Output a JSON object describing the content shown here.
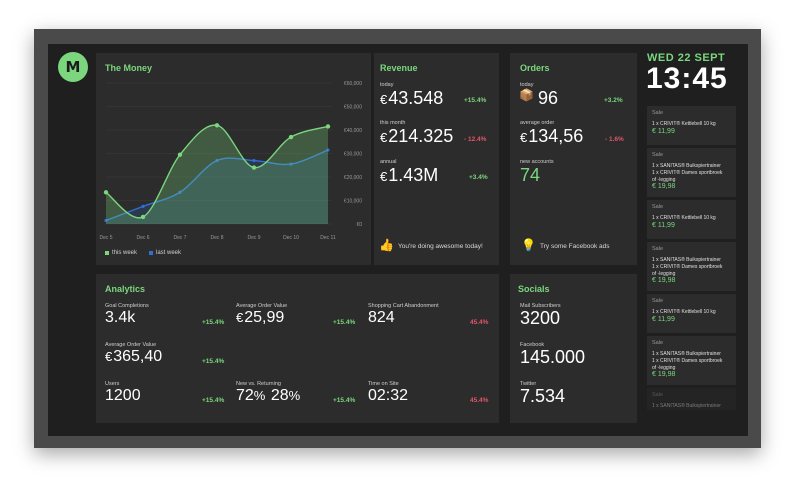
{
  "clock": {
    "date": "WED 22 SEPT",
    "time": "13:45"
  },
  "money": {
    "title": "The Money",
    "x_ticks": [
      "Dec 5",
      "Dec 6",
      "Dec 7",
      "Dec 8",
      "Dec 9",
      "Dec 10",
      "Dec 11"
    ],
    "y_ticks": [
      "€60,000",
      "€50,000",
      "€40,000",
      "€30,000",
      "€20,000",
      "€10,000",
      "€0"
    ],
    "legend": {
      "this_week": "this week",
      "last_week": "last week"
    }
  },
  "chart_data": {
    "type": "area",
    "title": "The Money",
    "categories": [
      "Dec 5",
      "Dec 6",
      "Dec 7",
      "Dec 8",
      "Dec 9",
      "Dec 10",
      "Dec 11"
    ],
    "ylim": [
      0,
      60000
    ],
    "series": [
      {
        "name": "this week",
        "values": [
          13500,
          3000,
          29500,
          42000,
          24000,
          37000,
          41500
        ],
        "color": "#7bd67e"
      },
      {
        "name": "last week",
        "values": [
          1500,
          7500,
          13500,
          27000,
          27000,
          25500,
          31500
        ],
        "color": "#2f6fd8"
      }
    ],
    "grid": true,
    "legend_position": "bottom-left"
  },
  "revenue": {
    "title": "Revenue",
    "today_label": "today",
    "today_value": "43.548",
    "today_change": "+15.4%",
    "month_label": "this month",
    "month_value": "214.325",
    "month_change": "- 12.4%",
    "annual_label": "annual",
    "annual_value": "1.43M",
    "annual_change": "+3.4%",
    "currency": "€",
    "note": "You're doing awesome today!"
  },
  "orders": {
    "title": "Orders",
    "today_label": "today",
    "today_value": "96",
    "today_change": "+3.2%",
    "avg_label": "average order",
    "avg_value": "134,56",
    "avg_change": "- 1.6%",
    "accounts_label": "new accounts",
    "accounts_value": "74",
    "currency": "€",
    "note": "Try some Facebook ads"
  },
  "analytics": {
    "title": "Analytics",
    "goal_label": "Goal Completions",
    "goal_value": "3.4k",
    "goal_change": "+15.4%",
    "aov_label": "Average Order Value",
    "aov_value": "25,99",
    "aov_change": "+15.4%",
    "cart_label": "Shopping Cart Abandonment",
    "cart_value": "824",
    "cart_change": "45.4%",
    "aov2_label": "Average Order Value",
    "aov2_value": "365,40",
    "aov2_change": "+15.4%",
    "users_label": "Users",
    "users_value": "1200",
    "users_change": "+15.4%",
    "nvr_label": "New vs. Returning",
    "nvr_new": "72",
    "nvr_ret": "28",
    "pct": "%",
    "nvr_change": "+15.4%",
    "tos_label": "Time on Site",
    "tos_value": "02:32",
    "tos_change": "45.4%",
    "currency": "€"
  },
  "socials": {
    "title": "Socials",
    "mail_label": "Mail Subscribers",
    "mail_value": "3200",
    "fb_label": "Facebook",
    "fb_value": "145.000",
    "tw_label": "Twitter",
    "tw_value": "7.534"
  },
  "sales": [
    {
      "label": "Sale",
      "lines": [
        "1 x CRIVIT® Kettlebell 10 kg"
      ],
      "price": "€ 11,99"
    },
    {
      "label": "Sale",
      "lines": [
        "1 x SANITAS® Buikspiertrainer",
        "1 x CRIVIT® Dames sportbroek",
        "of -legging"
      ],
      "price": "€ 19,98"
    },
    {
      "label": "Sale",
      "lines": [
        "1 x CRIVIT® Kettlebell 10 kg"
      ],
      "price": "€ 11,99"
    },
    {
      "label": "Sale",
      "lines": [
        "1 x SANITAS® Buikspiertrainer",
        "1 x CRIVIT® Dames sportbroek",
        "of -legging"
      ],
      "price": "€ 19,98"
    },
    {
      "label": "Sale",
      "lines": [
        "1 x CRIVIT® Kettlebell 10 kg"
      ],
      "price": "€ 11,99"
    },
    {
      "label": "Sale",
      "lines": [
        "1 x SANITAS® Buikspiertrainer",
        "1 x CRIVIT® Dames sportbroek",
        "of -legging"
      ],
      "price": "€ 19,98"
    },
    {
      "label": "Sale",
      "lines": [
        "1 x SANITAS® Buikspiertrainer"
      ],
      "price": ""
    }
  ],
  "icons": {
    "logo": "money-logo-icon",
    "thumb": "thumbs-up-icon",
    "bulb": "lightbulb-icon",
    "box": "package-icon"
  }
}
